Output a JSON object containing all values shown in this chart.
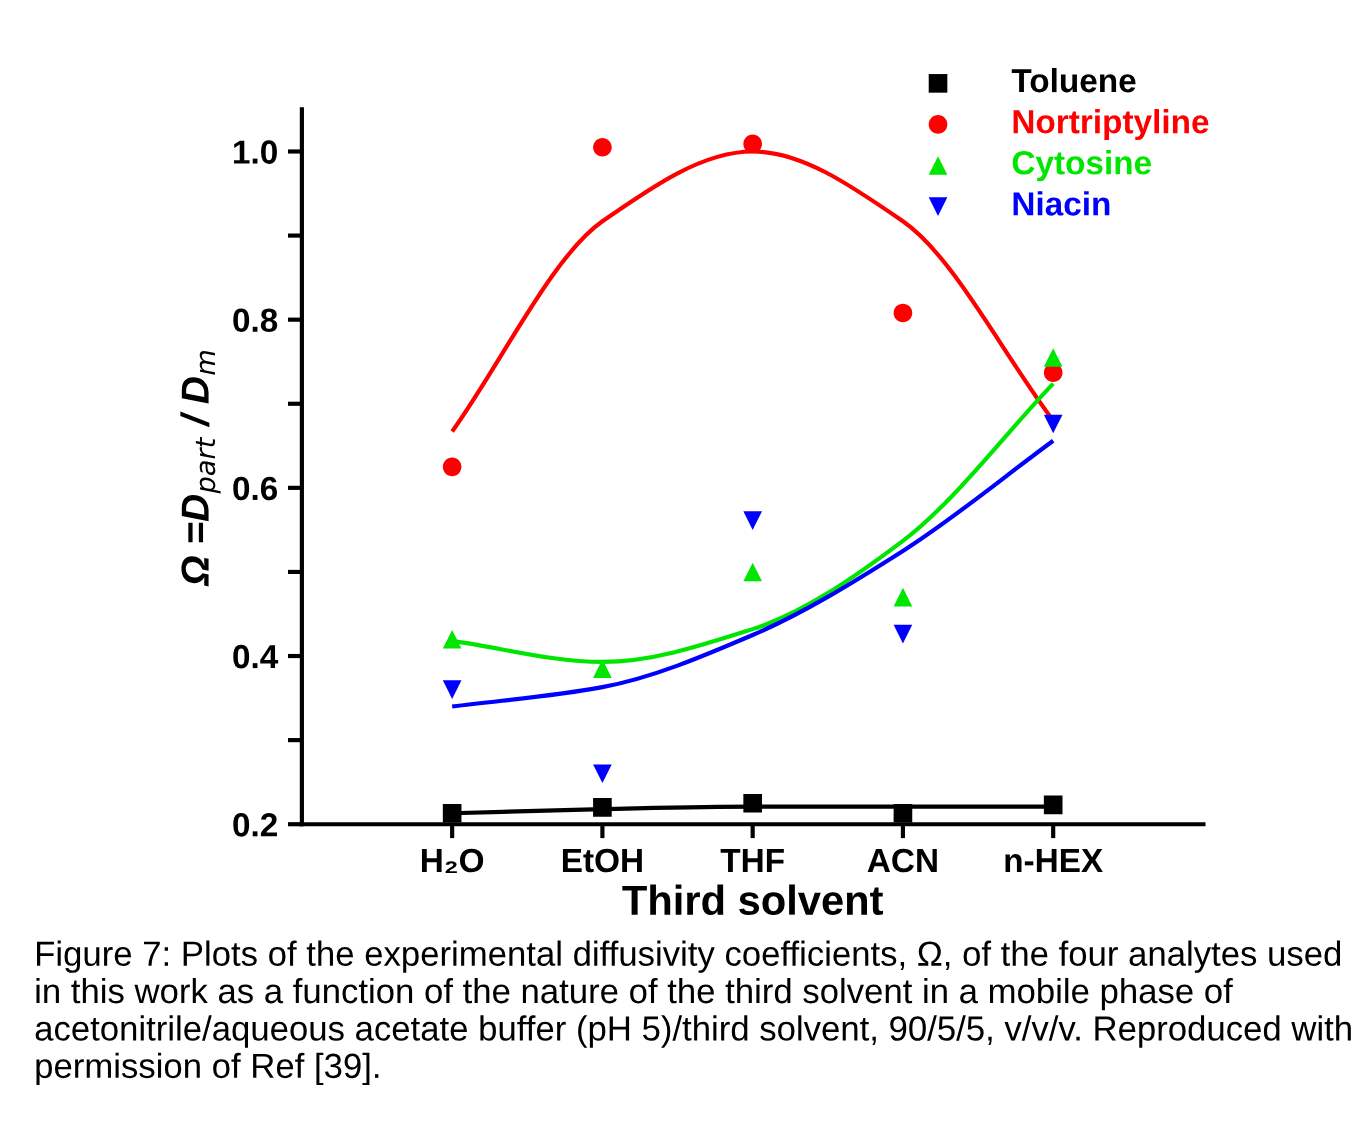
{
  "chart_data": {
    "type": "scatter",
    "xlabel": "Third solvent",
    "ylabel": "Ω =D$_{part}$ / D$_{m}$",
    "categories": [
      "H₂O",
      "EtOH",
      "THF",
      "ACN",
      "n-HEX"
    ],
    "ylim": [
      0.2,
      1.05
    ],
    "yticks": [
      0.2,
      {
        "value": 0.3,
        "label": null
      },
      0.4,
      {
        "value": 0.5,
        "label": null
      },
      0.6,
      {
        "value": 0.7,
        "label": null
      },
      0.8,
      {
        "value": 0.9,
        "label": null
      },
      {
        "value": 1.0,
        "label": "1.0"
      }
    ],
    "grid": false,
    "legend": "top right",
    "series": [
      {
        "name": "Toluene",
        "color": "#000000",
        "marker": "square",
        "values": [
          0.213,
          0.22,
          0.225,
          0.213,
          0.223
        ]
      },
      {
        "name": "Nortriptyline",
        "color": "#ff0000",
        "marker": "circle",
        "values": [
          0.625,
          1.005,
          1.009,
          0.808,
          0.737
        ]
      },
      {
        "name": "Cytosine",
        "color": "#00e600",
        "marker": "triangle",
        "values": [
          0.42,
          0.385,
          0.5,
          0.47,
          0.755
        ]
      },
      {
        "name": "Niacin",
        "color": "#0000ff",
        "marker": "triangle_down",
        "values": [
          0.36,
          0.26,
          0.561,
          0.426,
          0.676
        ]
      },
      {
        "type": "line",
        "color": "#000000",
        "values": [
          0.213,
          0.218,
          0.221,
          0.221,
          0.221
        ]
      },
      {
        "type": "line",
        "color": "#ff0000",
        "values": [
          0.667,
          0.917,
          1.0,
          0.917,
          0.68
        ]
      },
      {
        "type": "line",
        "color": "#00e600",
        "values": [
          0.418,
          0.393,
          0.432,
          0.537,
          0.724
        ]
      },
      {
        "type": "line",
        "color": "#0000ff",
        "values": [
          0.34,
          0.363,
          0.425,
          0.525,
          0.656
        ]
      }
    ],
    "annotations": [
      "Figure 7: Plots of the experimental diffusivity coefficients, Ω, of the four analytes used in this work as a function of the nature of the third solvent in a mobile phase of acetonitrile/aqueous acetate buffer (pH 5)/third solvent, 90/5/5, v/v/v. Reproduced with permission of Ref [39]."
    ]
  }
}
